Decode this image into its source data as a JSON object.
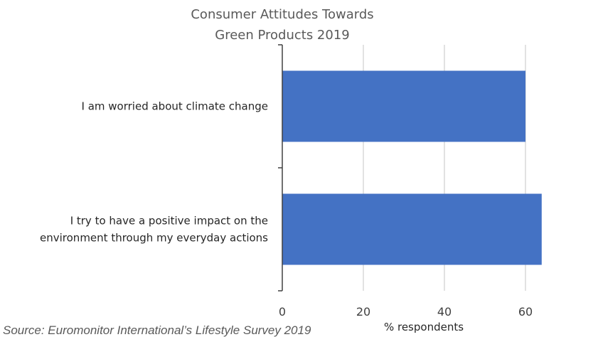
{
  "chart_data": {
    "type": "bar",
    "orientation": "horizontal",
    "title_lines": [
      "Consumer Attitudes Towards",
      "Green Products 2019"
    ],
    "categories": [
      [
        "I am worried about climate change"
      ],
      [
        "I try to have a positive impact on the",
        "environment through my everyday actions"
      ]
    ],
    "values": [
      60,
      64
    ],
    "xlabel": "% respondents",
    "ylabel": "",
    "xlim": [
      0,
      70
    ],
    "xticks": [
      0,
      20,
      40,
      60
    ],
    "grid": true,
    "bar_color": "#4472C4",
    "grid_color": "#d9d9d9",
    "axis_color": "#404040"
  },
  "source": "Source: Euromonitor International’s Lifestyle Survey 2019"
}
